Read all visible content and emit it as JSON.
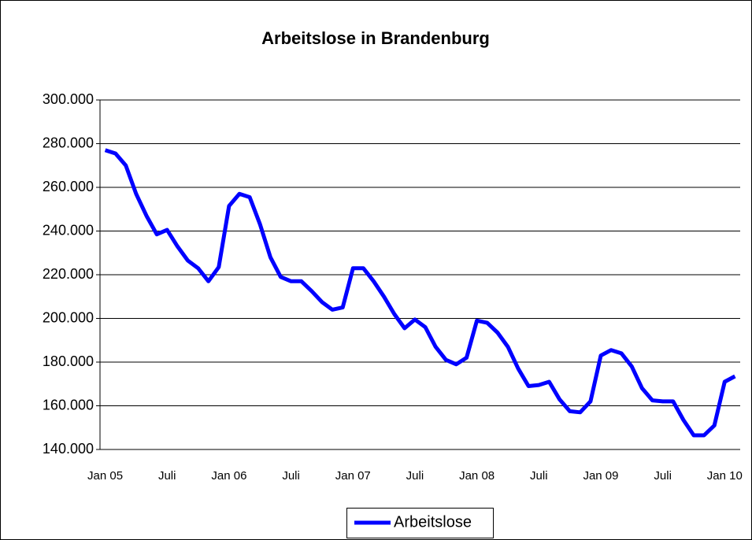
{
  "chart_data": {
    "type": "line",
    "title": "Arbeitslose in Brandenburg",
    "categories": [
      "Jan 05",
      null,
      null,
      null,
      null,
      null,
      "Juli",
      null,
      null,
      null,
      null,
      null,
      "Jan 06",
      null,
      null,
      null,
      null,
      null,
      "Juli",
      null,
      null,
      null,
      null,
      null,
      "Jan 07",
      null,
      null,
      null,
      null,
      null,
      "Juli",
      null,
      null,
      null,
      null,
      null,
      "Jan 08",
      null,
      null,
      null,
      null,
      null,
      "Juli",
      null,
      null,
      null,
      null,
      null,
      "Jan 09",
      null,
      null,
      null,
      null,
      null,
      "Juli",
      null,
      null,
      null,
      null,
      null,
      "Jan 10",
      null
    ],
    "series": [
      {
        "name": "Arbeitslose",
        "color": "#0000ff",
        "values": [
          277000,
          275500,
          270000,
          257000,
          247000,
          238500,
          240500,
          233000,
          226500,
          223000,
          217000,
          223500,
          251500,
          257000,
          255500,
          243000,
          228000,
          219000,
          217000,
          217000,
          212500,
          207500,
          204000,
          205000,
          223000,
          223000,
          217000,
          210000,
          202000,
          195500,
          199500,
          196000,
          187000,
          181000,
          179000,
          182000,
          199000,
          198000,
          193500,
          187000,
          177000,
          169000,
          169500,
          171000,
          163000,
          157500,
          157000,
          162000,
          183000,
          185500,
          184000,
          178000,
          168000,
          162500,
          162000,
          162000,
          153500,
          146500,
          146500,
          151000,
          171000,
          173500
        ]
      }
    ],
    "ylim": [
      140000,
      300000
    ],
    "yticks": [
      {
        "value": 140000,
        "label": "140.000"
      },
      {
        "value": 160000,
        "label": "160.000"
      },
      {
        "value": 180000,
        "label": "180.000"
      },
      {
        "value": 200000,
        "label": "200.000"
      },
      {
        "value": 220000,
        "label": "220.000"
      },
      {
        "value": 240000,
        "label": "240.000"
      },
      {
        "value": 260000,
        "label": "260.000"
      },
      {
        "value": 280000,
        "label": "280.000"
      },
      {
        "value": 300000,
        "label": "300.000"
      }
    ],
    "grid": true,
    "legend": "bottom"
  }
}
